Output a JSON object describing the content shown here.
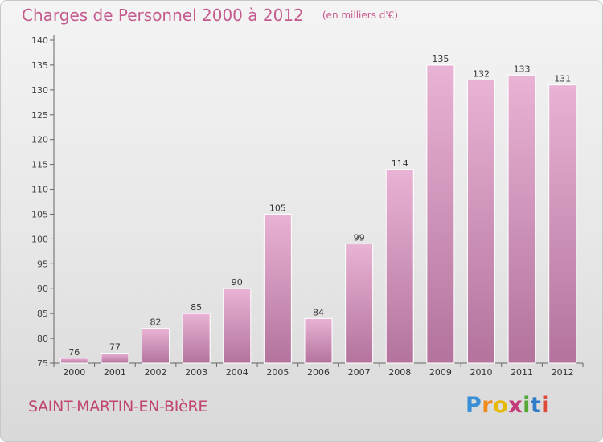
{
  "title": "Charges de Personnel 2000 à 2012",
  "unit": "(en milliers d'€)",
  "commune": "SAINT-MARTIN-EN-BIèRE",
  "brand": {
    "text": "Proxiti",
    "letters": [
      "P",
      "r",
      "o",
      "x",
      "i",
      "t",
      "i"
    ],
    "colors": [
      "#3b8fd6",
      "#f08a1c",
      "#e6b800",
      "#c23a7a",
      "#54a838",
      "#2f7cc8",
      "#e04a3a"
    ]
  },
  "colors": {
    "bar": "#d98cbd",
    "bar_light": "#e7aed2",
    "bar_dark": "#b06f9a",
    "title": "#c55a8e"
  },
  "chart_data": {
    "type": "bar",
    "categories": [
      "2000",
      "2001",
      "2002",
      "2003",
      "2004",
      "2005",
      "2006",
      "2007",
      "2008",
      "2009",
      "2010",
      "2011",
      "2012"
    ],
    "values": [
      76,
      77,
      82,
      85,
      90,
      105,
      84,
      99,
      114,
      135,
      132,
      133,
      131
    ],
    "ylim": [
      75,
      140
    ],
    "yticks": [
      75,
      80,
      85,
      90,
      95,
      100,
      105,
      110,
      115,
      120,
      125,
      130,
      135,
      140
    ],
    "grid": false,
    "data_labels": true
  }
}
